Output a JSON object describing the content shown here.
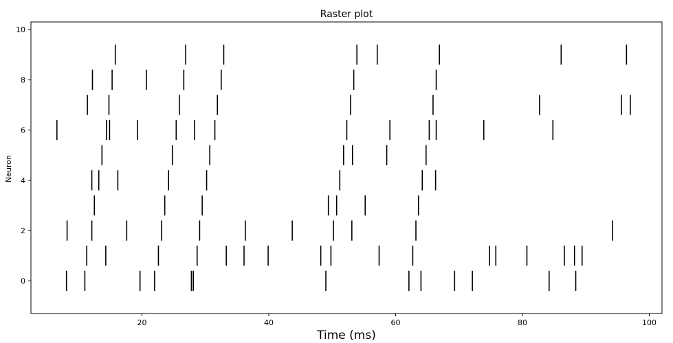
{
  "chart_data": {
    "type": "scatter",
    "marker": "vertical-line",
    "title": "Raster plot",
    "xlabel": "Time (ms)",
    "ylabel": "Neuron",
    "xlim": [
      2.5,
      102
    ],
    "ylim": [
      -1.3,
      10.3
    ],
    "xticks": [
      20,
      40,
      60,
      80,
      100
    ],
    "yticks": [
      0,
      2,
      4,
      6,
      8,
      10
    ],
    "grid": false,
    "mark_color": "#000000",
    "series": [
      {
        "neuron": 0,
        "x": [
          8.1,
          11.0,
          19.7,
          22.0,
          27.8,
          28.1,
          49.0,
          62.1,
          64.0,
          69.3,
          72.1,
          84.2,
          88.4
        ]
      },
      {
        "neuron": 1,
        "x": [
          11.3,
          14.3,
          22.6,
          28.7,
          33.3,
          36.1,
          39.9,
          48.2,
          49.8,
          57.4,
          62.7,
          74.8,
          75.8,
          80.7,
          86.6,
          88.2,
          89.4
        ]
      },
      {
        "neuron": 2,
        "x": [
          8.2,
          12.1,
          17.6,
          23.1,
          29.1,
          36.3,
          43.7,
          50.2,
          53.1,
          63.2,
          94.2
        ]
      },
      {
        "neuron": 3,
        "x": [
          12.5,
          23.6,
          29.5,
          49.4,
          50.7,
          55.2,
          63.6
        ]
      },
      {
        "neuron": 4,
        "x": [
          12.1,
          13.2,
          16.2,
          24.2,
          30.2,
          51.2,
          64.2,
          66.3
        ]
      },
      {
        "neuron": 5,
        "x": [
          13.7,
          24.8,
          30.7,
          51.8,
          53.2,
          58.6,
          64.8
        ]
      },
      {
        "neuron": 6,
        "x": [
          6.6,
          14.4,
          14.9,
          19.3,
          25.4,
          28.3,
          31.5,
          52.3,
          59.1,
          65.3,
          66.4,
          73.9,
          84.8
        ]
      },
      {
        "neuron": 7,
        "x": [
          11.4,
          14.8,
          25.9,
          31.9,
          52.9,
          65.9,
          82.7,
          95.6,
          97.0
        ]
      },
      {
        "neuron": 8,
        "x": [
          12.2,
          15.3,
          20.7,
          26.6,
          32.5,
          53.4,
          66.4
        ]
      },
      {
        "neuron": 9,
        "x": [
          15.8,
          26.9,
          32.9,
          53.9,
          57.1,
          66.9,
          86.1,
          96.4
        ]
      }
    ]
  }
}
